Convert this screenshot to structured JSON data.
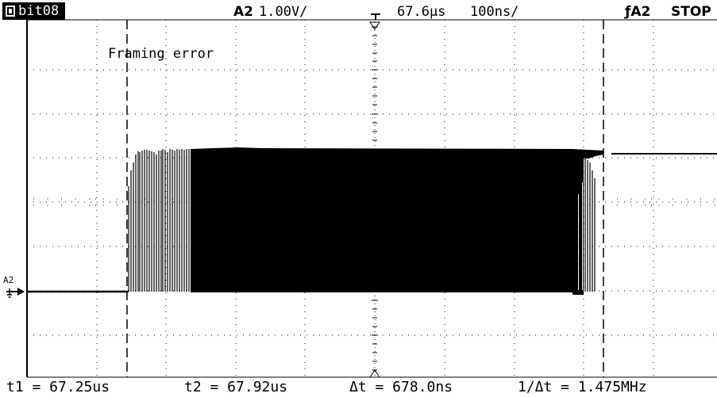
{
  "header": {
    "memory_label": "bit08",
    "channel": "A2",
    "volts_per_div": "1.00V/",
    "trigger_position": "67.6µs",
    "time_per_div": "100ns/",
    "trigger_source": "ƒA2",
    "run_state": "STOP"
  },
  "annotation": "Framing error",
  "channel_marker": "A2",
  "footer": {
    "t1": "t1 = 67.25us",
    "t2": "t2 = 67.92us",
    "delta_t": "Δt = 678.0ns",
    "inv_delta_t": "1/Δt = 1.475MHz"
  },
  "colors": {
    "background": "#ffffff",
    "trace": "#000000",
    "grid": "#000000"
  },
  "icons": [
    "memory-icon",
    "trigger-edge-icon",
    "ground-marker-icon"
  ]
}
